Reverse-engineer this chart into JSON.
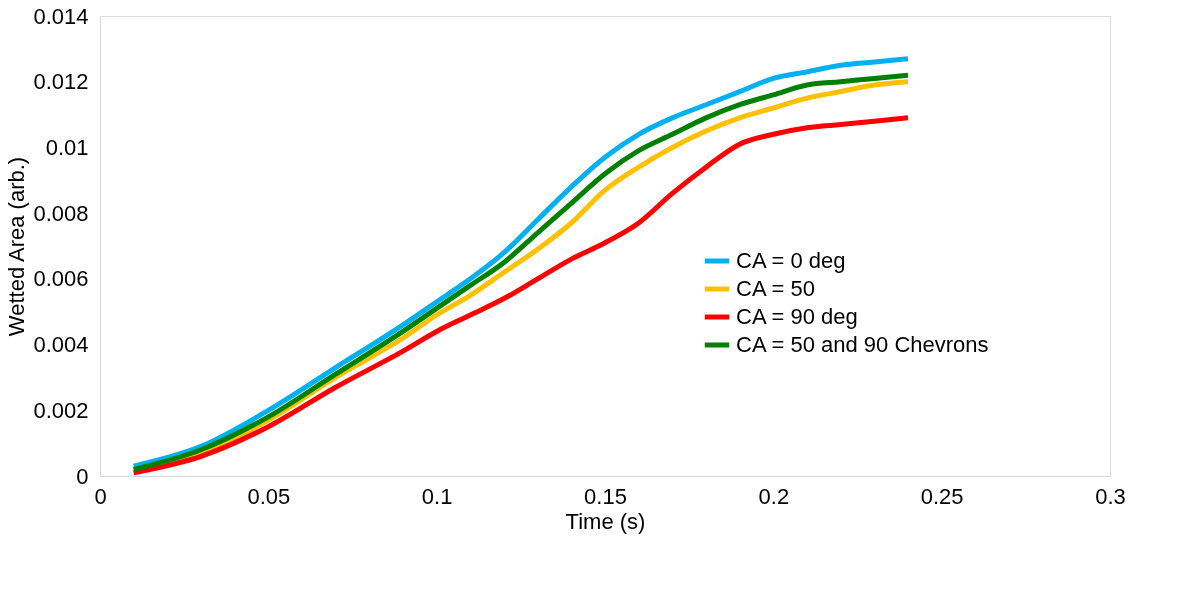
{
  "chart_data": {
    "type": "line",
    "xlabel": "Time (s)",
    "ylabel": "Wetted Area (arb.)",
    "x": [
      0.01,
      0.03,
      0.05,
      0.07,
      0.09,
      0.1,
      0.11,
      0.12,
      0.13,
      0.14,
      0.15,
      0.16,
      0.17,
      0.18,
      0.19,
      0.2,
      0.21,
      0.22,
      0.23,
      0.24
    ],
    "series": [
      {
        "name": "CA = 0 deg",
        "color": "#00b0f0",
        "values": [
          0.0003,
          0.0009,
          0.002,
          0.0033,
          0.0046,
          0.0053,
          0.006,
          0.0068,
          0.0078,
          0.0088,
          0.0097,
          0.0104,
          0.0109,
          0.0113,
          0.0117,
          0.0121,
          0.0123,
          0.0125,
          0.0126,
          0.0127
        ]
      },
      {
        "name": "CA = 50",
        "color": "#ffc000",
        "values": [
          0.0002,
          0.0007,
          0.0017,
          0.003,
          0.0042,
          0.0049,
          0.0055,
          0.0062,
          0.0069,
          0.0077,
          0.0087,
          0.0094,
          0.01,
          0.0105,
          0.0109,
          0.0112,
          0.0115,
          0.0117,
          0.0119,
          0.012
        ]
      },
      {
        "name": "CA = 90 deg",
        "color": "#ff0000",
        "values": [
          0.0001,
          0.0006,
          0.0015,
          0.0027,
          0.0038,
          0.0044,
          0.0049,
          0.0054,
          0.006,
          0.0066,
          0.0071,
          0.0077,
          0.0086,
          0.0094,
          0.0101,
          0.0104,
          0.0106,
          0.0107,
          0.0108,
          0.0109
        ]
      },
      {
        "name": "CA = 50 and 90 Chevrons",
        "color": "#008000",
        "values": [
          0.0002,
          0.0008,
          0.0018,
          0.0031,
          0.0044,
          0.0051,
          0.0058,
          0.0065,
          0.0074,
          0.0083,
          0.0092,
          0.0099,
          0.0104,
          0.0109,
          0.0113,
          0.0116,
          0.0119,
          0.012,
          0.0121,
          0.0122
        ]
      }
    ],
    "xlim": [
      0,
      0.3
    ],
    "xticks": [
      0,
      0.05,
      0.1,
      0.15,
      0.2,
      0.25,
      0.3
    ],
    "ylim": [
      0,
      0.014
    ],
    "yticks": [
      0,
      0.002,
      0.004,
      0.006,
      0.008,
      0.01,
      0.012,
      0.014
    ],
    "grid": false,
    "legend": "bottom right",
    "marker": "none",
    "line_style": "solid"
  }
}
